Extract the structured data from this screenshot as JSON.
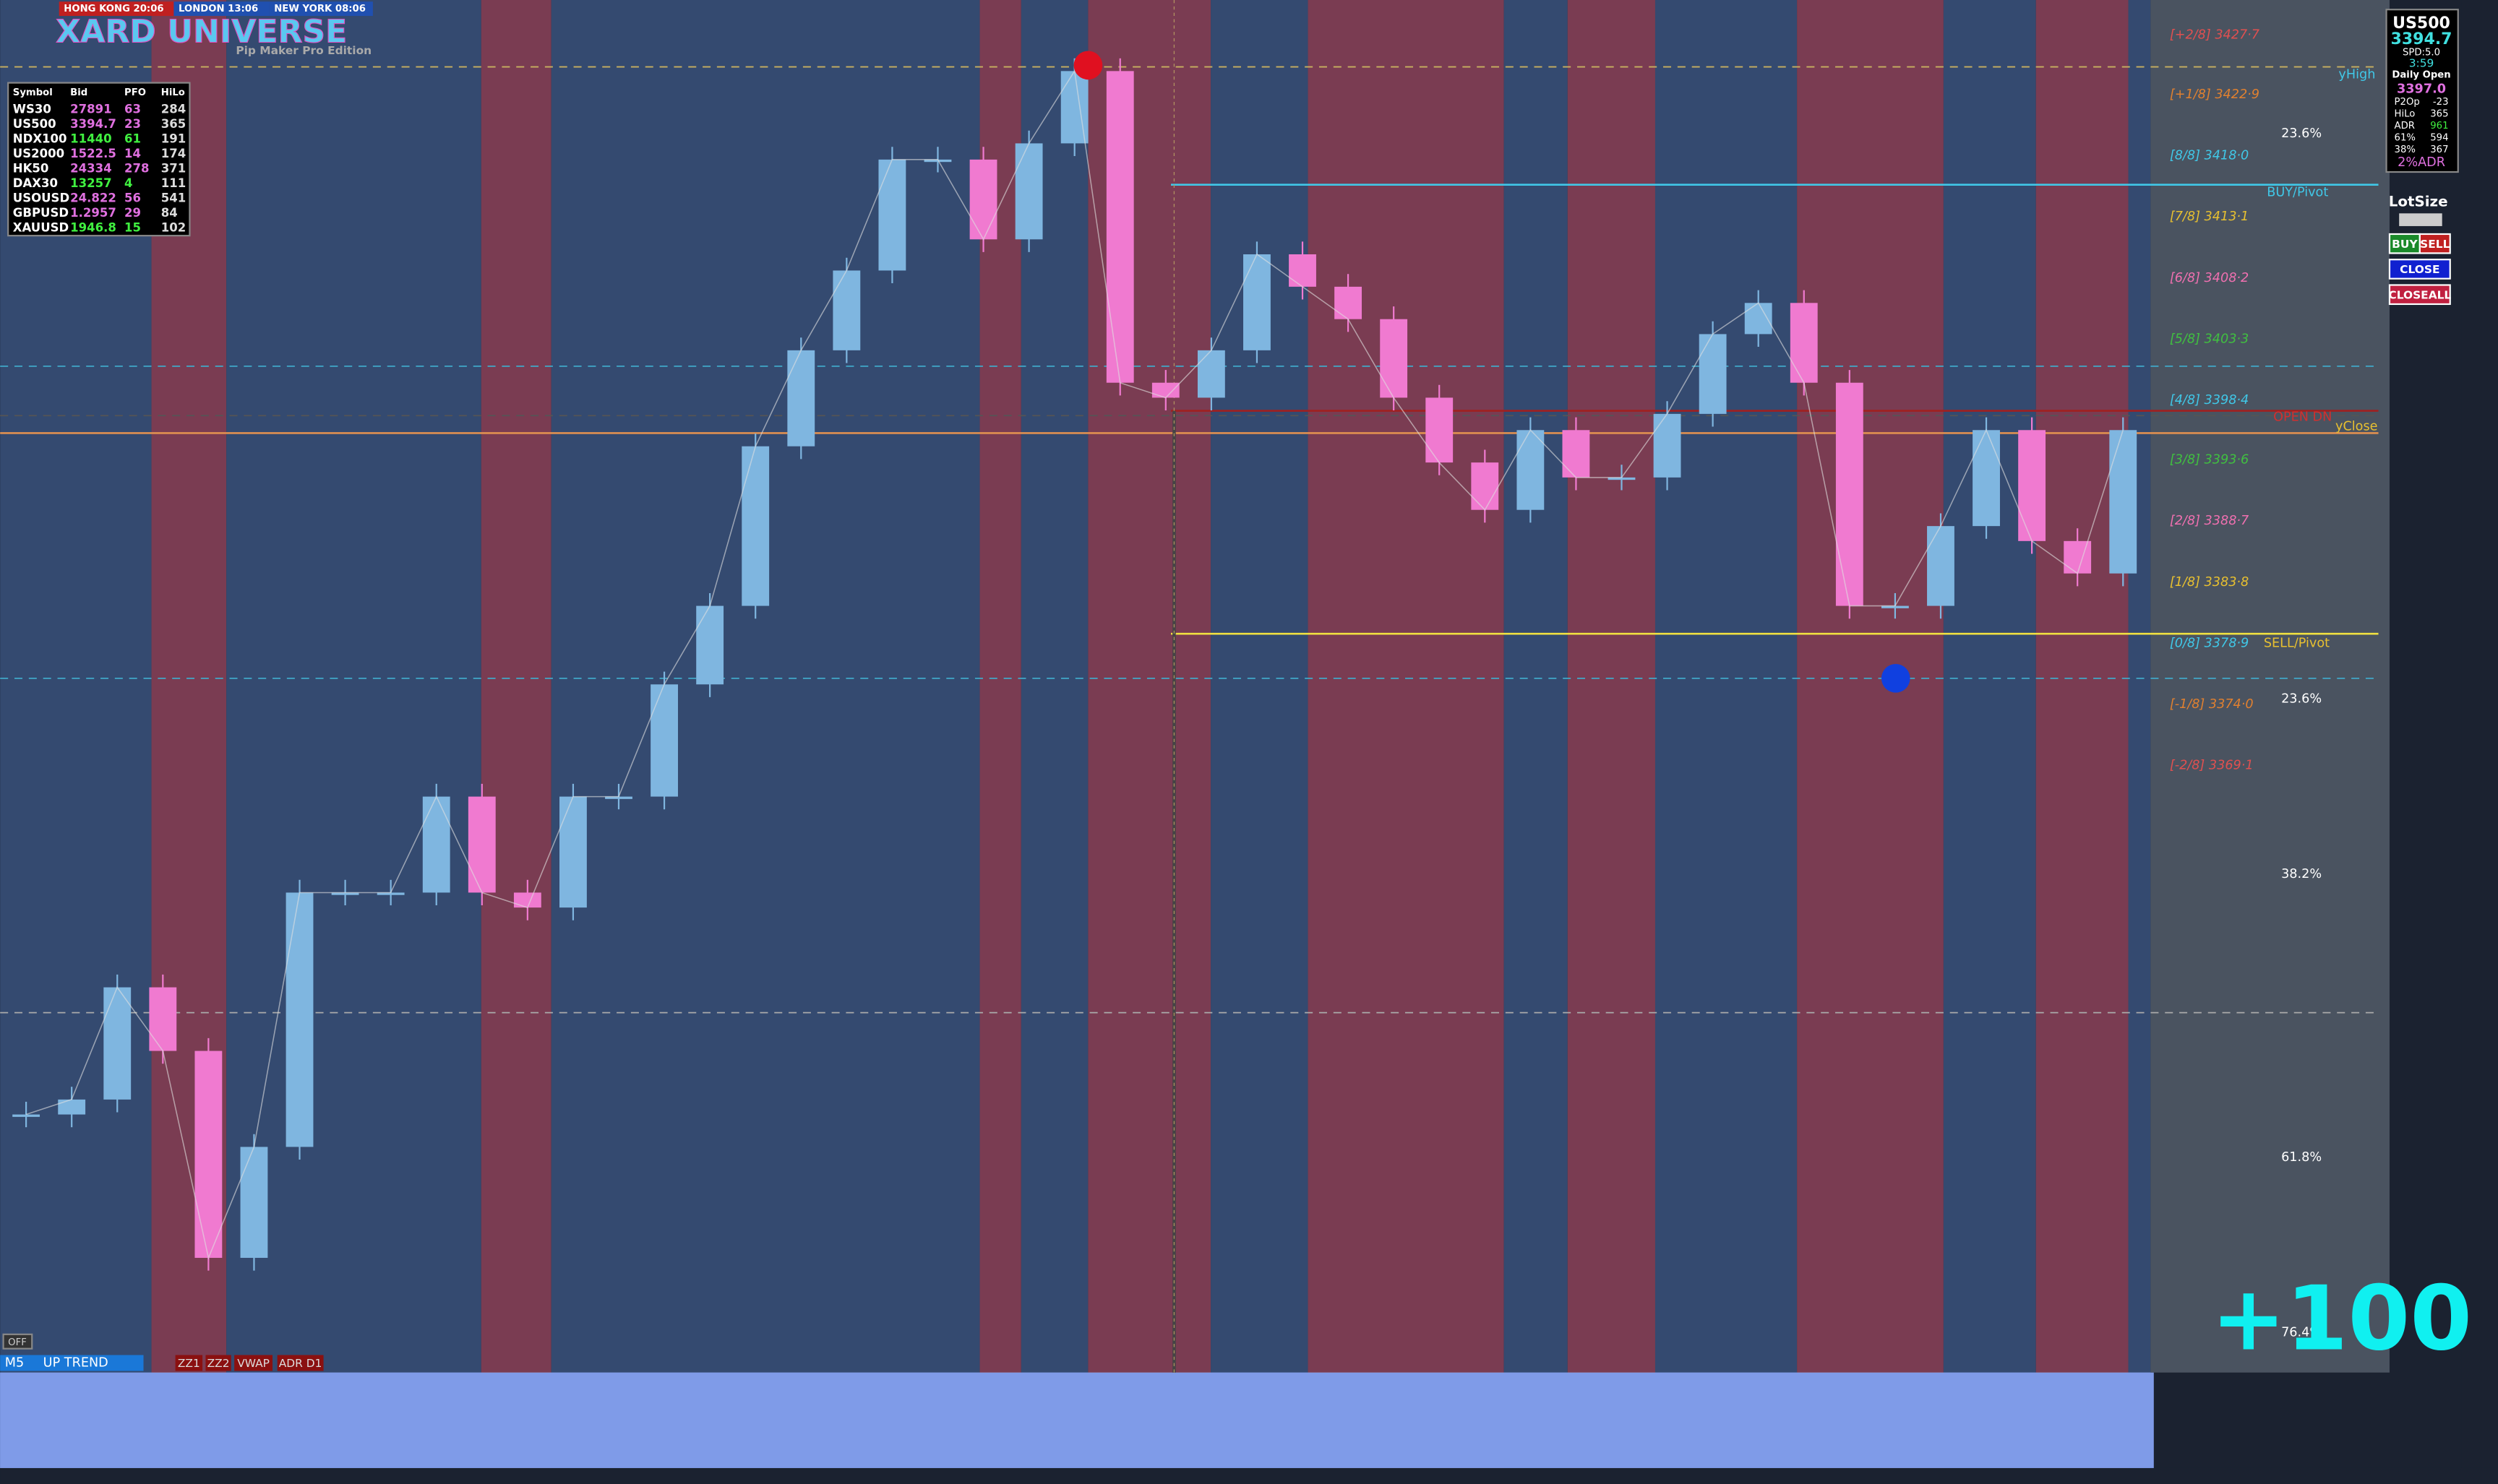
{
  "header": {
    "clocks": [
      "HONG KONG 20:06",
      "LONDON 13:06",
      "NEW YORK 08:06"
    ],
    "title": "XARD UNIVERSE",
    "subtitle": "Pip Maker Pro Edition"
  },
  "watchlist": {
    "columns": [
      "Symbol",
      "Bid",
      "PFO",
      "HiLo"
    ],
    "rows": [
      [
        "WS30",
        "27891",
        "63",
        "284"
      ],
      [
        "US500",
        "3394.7",
        "23",
        "365"
      ],
      [
        "NDX100",
        "11440",
        "61",
        "191"
      ],
      [
        "US2000",
        "1522.5",
        "14",
        "174"
      ],
      [
        "HK50",
        "24334",
        "278",
        "371"
      ],
      [
        "DAX30",
        "13257",
        "4",
        "111"
      ],
      [
        "USOUSD",
        "24.822",
        "56",
        "541"
      ],
      [
        "GBPUSD",
        "1.2957",
        "29",
        "84"
      ],
      [
        "XAUUSD",
        "1946.8",
        "15",
        "102"
      ]
    ]
  },
  "panel": {
    "symbol": "US500",
    "price": "3394.7",
    "spread": "SPD:5.0",
    "timer": "3:59",
    "open_label": "Daily Open",
    "open": "3397.0",
    "stats": [
      [
        "P2Op",
        "-23"
      ],
      [
        "HiLo",
        "365"
      ],
      [
        "ADR",
        "961"
      ],
      [
        "61%",
        "594"
      ],
      [
        "38%",
        "367"
      ]
    ],
    "adr": "2%ADR",
    "lot_label": "LotSize",
    "buttons": [
      "BUY",
      "SELL",
      "CLOSE",
      "CLOSEALL"
    ]
  },
  "price_chart": {
    "ylim": [
      3320.4,
      3430.5
    ],
    "closes": [
      3341.1,
      3342.3,
      3351.3,
      3346.2,
      3329.6,
      3338.5,
      3358.9,
      3358.9,
      3358.9,
      3366.6,
      3358.9,
      3357.7,
      3366.6,
      3366.6,
      3375.6,
      3381.9,
      3394.7,
      3402.4,
      3408.8,
      3417.7,
      3417.7,
      3411.3,
      3419.0,
      3424.8,
      3399.8,
      3398.6,
      3402.4,
      3410.1,
      3407.5,
      3404.9,
      3398.6,
      3393.4,
      3389.6,
      3396.0,
      3392.2,
      3392.2,
      3397.3,
      3403.7,
      3406.2,
      3399.8,
      3381.9,
      3381.9,
      3388.3,
      3396.0,
      3387.1,
      3384.5,
      3396.0
    ],
    "up_color": "#7fb6e0",
    "down_color": "#f07ad0"
  },
  "levels": [
    {
      "value": 3427.7,
      "label": "[+2/8] 3427·7",
      "color": "#e05050"
    },
    {
      "value": 3422.9,
      "label": "[+1/8] 3422·9",
      "color": "#e08030"
    },
    {
      "value": 3418.0,
      "label": "[8/8] 3418·0",
      "color": "#40c8e8"
    },
    {
      "value": 3413.1,
      "label": "[7/8] 3413·1",
      "color": "#e8c030"
    },
    {
      "value": 3408.2,
      "label": "[6/8] 3408·2",
      "color": "#f070b0"
    },
    {
      "value": 3403.3,
      "label": "[5/8] 3403·3",
      "color": "#40c040"
    },
    {
      "value": 3398.4,
      "label": "[4/8] 3398·4",
      "color": "#40c8e8"
    },
    {
      "value": 3393.6,
      "label": "[3/8] 3393·6",
      "color": "#40c040"
    },
    {
      "value": 3388.7,
      "label": "[2/8] 3388·7",
      "color": "#f070b0"
    },
    {
      "value": 3383.8,
      "label": "[1/8] 3383·8",
      "color": "#e8c030"
    },
    {
      "value": 3378.9,
      "label": "[0/8] 3378·9",
      "color": "#40c8e8"
    },
    {
      "value": 3374.0,
      "label": "[-1/8] 3374·0",
      "color": "#e08030"
    },
    {
      "value": 3369.1,
      "label": "[-2/8] 3369·1",
      "color": "#e05050"
    }
  ],
  "line_labels": [
    "yHigh",
    "BUY/Pivot",
    "OPEN DN",
    "yClose",
    "SELL/Pivot"
  ],
  "fib_labels": [
    "23.6%",
    "23.6%",
    "38.2%",
    "61.8%",
    "76.4%"
  ],
  "profit": "+100",
  "status": {
    "off": "OFF",
    "timeframe": "M5",
    "trend": "UP TREND",
    "buttons": [
      "ZZ1",
      "ZZ2",
      "VWAP",
      "ADR D1"
    ]
  }
}
